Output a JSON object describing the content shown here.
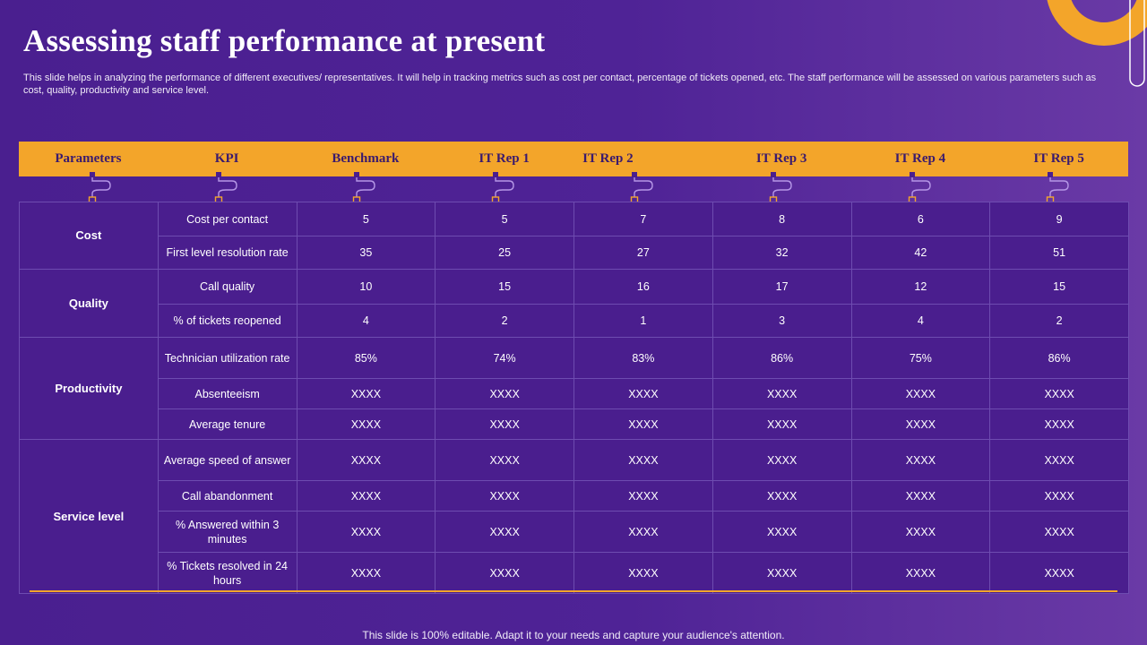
{
  "slide": {
    "title": "Assessing staff performance at present",
    "subtitle": "This slide helps in analyzing the performance of different executives/ representatives. It will help in tracking metrics such as cost per contact, percentage of tickets opened, etc. The staff performance will be assessed on various parameters such as cost, quality, productivity and service level.",
    "footer": "This slide is 100% editable. Adapt it to your needs and capture your audience's attention."
  },
  "colors": {
    "background": "#4f2396",
    "accent": "#f3a52a",
    "header_text": "#3a1a6e",
    "grid_line": "#6e4cb0"
  },
  "table": {
    "headers": [
      "Parameters",
      "KPI",
      "Benchmark",
      "IT Rep 1",
      "IT Rep 2",
      "IT Rep 3",
      "IT Rep 4",
      "IT Rep 5"
    ],
    "groups": [
      {
        "parameter": "Cost",
        "rows": [
          {
            "kpi": "Cost per contact",
            "values": [
              "5",
              "5",
              "7",
              "8",
              "6",
              "9"
            ]
          },
          {
            "kpi": "First level resolution rate",
            "values": [
              "35",
              "25",
              "27",
              "32",
              "42",
              "51"
            ]
          }
        ]
      },
      {
        "parameter": "Quality",
        "rows": [
          {
            "kpi": "Call quality",
            "values": [
              "10",
              "15",
              "16",
              "17",
              "12",
              "15"
            ]
          },
          {
            "kpi": "% of tickets reopened",
            "values": [
              "4",
              "2",
              "1",
              "3",
              "4",
              "2"
            ]
          }
        ]
      },
      {
        "parameter": "Productivity",
        "rows": [
          {
            "kpi": "Technician utilization rate",
            "values": [
              "85%",
              "74%",
              "83%",
              "86%",
              "75%",
              "86%"
            ]
          },
          {
            "kpi": "Absenteeism",
            "values": [
              "XXXX",
              "XXXX",
              "XXXX",
              "XXXX",
              "XXXX",
              "XXXX"
            ]
          },
          {
            "kpi": "Average  tenure",
            "values": [
              "XXXX",
              "XXXX",
              "XXXX",
              "XXXX",
              "XXXX",
              "XXXX"
            ]
          }
        ]
      },
      {
        "parameter": "Service level",
        "rows": [
          {
            "kpi": "Average  speed of answer",
            "values": [
              "XXXX",
              "XXXX",
              "XXXX",
              "XXXX",
              "XXXX",
              "XXXX"
            ]
          },
          {
            "kpi": "Call abandonment",
            "values": [
              "XXXX",
              "XXXX",
              "XXXX",
              "XXXX",
              "XXXX",
              "XXXX"
            ]
          },
          {
            "kpi": "% Answered within 3 minutes",
            "values": [
              "XXXX",
              "XXXX",
              "XXXX",
              "XXXX",
              "XXXX",
              "XXXX"
            ]
          },
          {
            "kpi": "% Tickets resolved  in 24 hours",
            "values": [
              "XXXX",
              "XXXX",
              "XXXX",
              "XXXX",
              "XXXX",
              "XXXX"
            ]
          }
        ]
      }
    ]
  }
}
